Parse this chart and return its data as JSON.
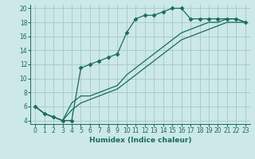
{
  "background_color": "#cce8e8",
  "grid_color": "#aacccc",
  "line_color": "#1a6b5a",
  "xlabel": "Humidex (Indice chaleur)",
  "xlim": [
    -0.5,
    23.5
  ],
  "ylim": [
    3.5,
    20.5
  ],
  "xticks": [
    0,
    1,
    2,
    3,
    4,
    5,
    6,
    7,
    8,
    9,
    10,
    11,
    12,
    13,
    14,
    15,
    16,
    17,
    18,
    19,
    20,
    21,
    22,
    23
  ],
  "yticks": [
    4,
    6,
    8,
    10,
    12,
    14,
    16,
    18,
    20
  ],
  "curve1_x": [
    0,
    1,
    2,
    3,
    4,
    5,
    6,
    7,
    8,
    9,
    10,
    11,
    12,
    13,
    14,
    15,
    16,
    17,
    18,
    19,
    20,
    21,
    22,
    23
  ],
  "curve1_y": [
    6.0,
    5.0,
    4.5,
    4.0,
    4.0,
    11.5,
    12.0,
    12.5,
    13.0,
    13.5,
    16.5,
    18.5,
    19.0,
    19.0,
    19.5,
    20.0,
    20.0,
    18.5,
    18.5,
    18.5,
    18.5,
    18.5,
    18.5,
    18.0
  ],
  "curve2_x": [
    0,
    1,
    2,
    3,
    4,
    5,
    6,
    7,
    8,
    9,
    10,
    11,
    12,
    13,
    14,
    15,
    16,
    17,
    18,
    19,
    20,
    21,
    22,
    23
  ],
  "curve2_y": [
    6.0,
    5.0,
    4.5,
    4.0,
    6.5,
    7.5,
    7.5,
    8.0,
    8.5,
    9.0,
    10.5,
    11.5,
    12.5,
    13.5,
    14.5,
    15.5,
    16.5,
    17.0,
    17.5,
    18.0,
    18.0,
    18.5,
    18.5,
    18.0
  ],
  "curve3_x": [
    0,
    1,
    2,
    3,
    4,
    5,
    6,
    7,
    8,
    9,
    10,
    11,
    12,
    13,
    14,
    15,
    16,
    17,
    18,
    19,
    20,
    21,
    22,
    23
  ],
  "curve3_y": [
    6.0,
    5.0,
    4.5,
    4.0,
    5.5,
    6.5,
    7.0,
    7.5,
    8.0,
    8.5,
    9.5,
    10.5,
    11.5,
    12.5,
    13.5,
    14.5,
    15.5,
    16.0,
    16.5,
    17.0,
    17.5,
    18.0,
    18.0,
    18.0
  ],
  "xlabel_fontsize": 6.5,
  "tick_fontsize": 5.5
}
